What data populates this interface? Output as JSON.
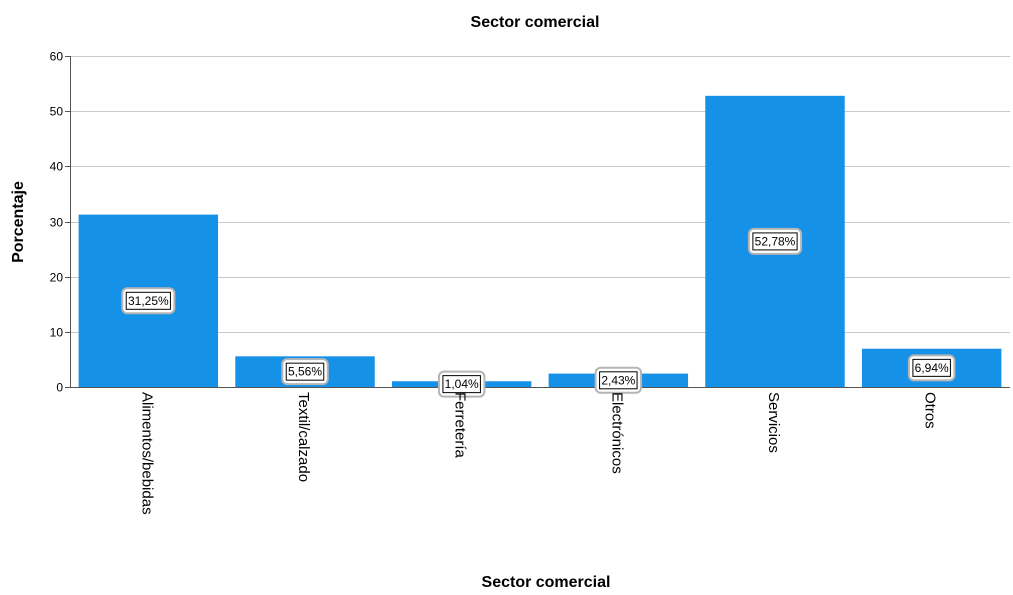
{
  "chart_data": {
    "type": "bar",
    "title": "Sector comercial",
    "xlabel": "Sector comercial",
    "ylabel": "Porcentaje",
    "categories": [
      "Alimentos/bebidas",
      "Textil/calzado",
      "Ferretería",
      "Electrónicos",
      "Servicios",
      "Otros"
    ],
    "values": [
      31.25,
      5.56,
      1.04,
      2.43,
      52.78,
      6.94
    ],
    "data_labels": [
      "31,25%",
      "5,56%",
      "1,04%",
      "2,43%",
      "52,78%",
      "6,94%"
    ],
    "ylim": [
      0,
      60
    ],
    "yticks": [
      "0",
      "10",
      "20",
      "30",
      "40",
      "50",
      "60"
    ],
    "grid": true,
    "legend": "none",
    "bar_color": "#1591e8"
  }
}
